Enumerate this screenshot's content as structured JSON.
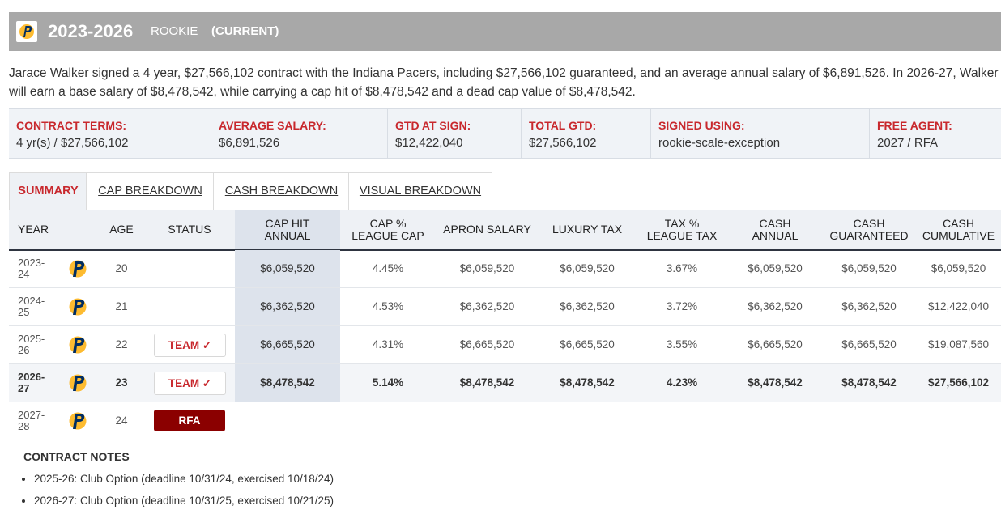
{
  "header": {
    "years": "2023-2026",
    "type": "ROOKIE",
    "current": "(CURRENT)",
    "team_logo": "pacers-logo-icon"
  },
  "summary_text": "Jarace Walker signed a 4 year, $27,566,102 contract with the Indiana Pacers, including $27,566,102 guaranteed, and an average annual salary of $6,891,526. In 2026-27, Walker will earn a base salary of $8,478,542, while carrying a cap hit of $8,478,542 and a dead cap value of $8,478,542.",
  "terms": [
    {
      "label": "CONTRACT TERMS:",
      "value": "4 yr(s) / $27,566,102"
    },
    {
      "label": "AVERAGE SALARY:",
      "value": "$6,891,526"
    },
    {
      "label": "GTD AT SIGN:",
      "value": "$12,422,040"
    },
    {
      "label": "TOTAL GTD:",
      "value": "$27,566,102"
    },
    {
      "label": "SIGNED USING:",
      "value": "rookie-scale-exception"
    },
    {
      "label": "FREE AGENT:",
      "value": "2027 / RFA"
    }
  ],
  "tabs": [
    "SUMMARY",
    "CAP BREAKDOWN",
    "CASH BREAKDOWN",
    "VISUAL BREAKDOWN"
  ],
  "active_tab": "SUMMARY",
  "table": {
    "headers": {
      "year": "YEAR",
      "age": "AGE",
      "status": "STATUS",
      "cap_hit": [
        "CAP HIT",
        "ANNUAL"
      ],
      "cap_pct": [
        "CAP %",
        "LEAGUE CAP"
      ],
      "apron": "APRON SALARY",
      "lux": "LUXURY TAX",
      "tax_pct": [
        "TAX %",
        "LEAGUE TAX"
      ],
      "cash_annual": [
        "CASH",
        "ANNUAL"
      ],
      "cash_gtd": [
        "CASH",
        "GUARANTEED"
      ],
      "cash_cum": [
        "CASH",
        "CUMULATIVE"
      ]
    },
    "rows": [
      {
        "year1": "2023-",
        "year2": "24",
        "age": "20",
        "status": "",
        "cap_hit": "$6,059,520",
        "cap_pct": "4.45%",
        "apron": "$6,059,520",
        "lux": "$6,059,520",
        "tax_pct": "3.67%",
        "cash_annual": "$6,059,520",
        "cash_gtd": "$6,059,520",
        "cash_cum": "$6,059,520"
      },
      {
        "year1": "2024-",
        "year2": "25",
        "age": "21",
        "status": "",
        "cap_hit": "$6,362,520",
        "cap_pct": "4.53%",
        "apron": "$6,362,520",
        "lux": "$6,362,520",
        "tax_pct": "3.72%",
        "cash_annual": "$6,362,520",
        "cash_gtd": "$6,362,520",
        "cash_cum": "$12,422,040"
      },
      {
        "year1": "2025-",
        "year2": "26",
        "age": "22",
        "status": "TEAM ✓",
        "cap_hit": "$6,665,520",
        "cap_pct": "4.31%",
        "apron": "$6,665,520",
        "lux": "$6,665,520",
        "tax_pct": "3.55%",
        "cash_annual": "$6,665,520",
        "cash_gtd": "$6,665,520",
        "cash_cum": "$19,087,560"
      },
      {
        "year1": "2026-",
        "year2": "27",
        "age": "23",
        "status": "TEAM ✓",
        "cap_hit": "$8,478,542",
        "cap_pct": "5.14%",
        "apron": "$8,478,542",
        "lux": "$8,478,542",
        "tax_pct": "4.23%",
        "cash_annual": "$8,478,542",
        "cash_gtd": "$8,478,542",
        "cash_cum": "$27,566,102"
      },
      {
        "year1": "2027-",
        "year2": "28",
        "age": "24",
        "status": "RFA"
      }
    ]
  },
  "notes": {
    "title": "CONTRACT NOTES",
    "items": [
      "2025-26: Club Option (deadline 10/31/24, exercised 10/18/24)",
      "2026-27: Club Option (deadline 10/31/25, exercised 10/21/25)"
    ]
  },
  "colors": {
    "accent_red": "#c8282d",
    "rfa_badge": "#8b0000",
    "header_bar": "#a8a8a8",
    "pacers_navy": "#002d62",
    "pacers_gold": "#fdbb30"
  }
}
